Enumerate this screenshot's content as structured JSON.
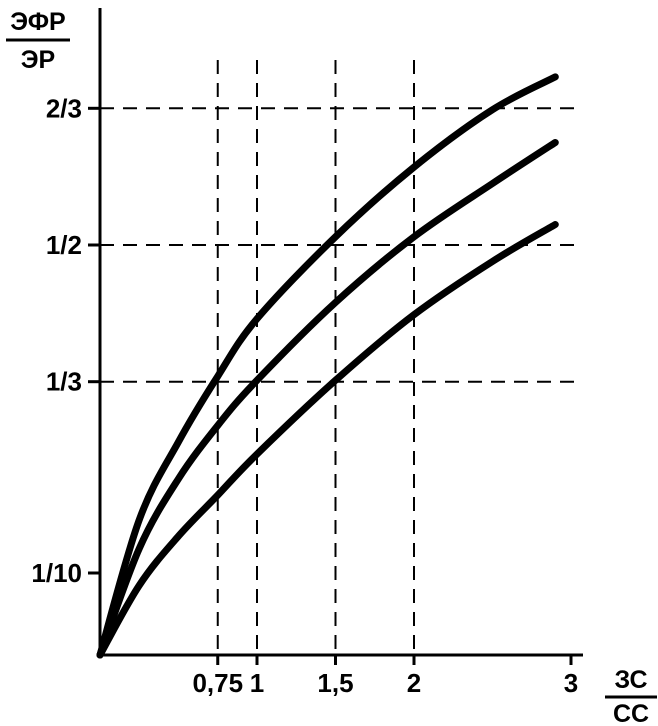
{
  "chart_data": {
    "type": "line",
    "title": "",
    "ylabel_numerator": "ЭФР",
    "ylabel_denominator": "ЭР",
    "xlabel_numerator": "ЗС",
    "xlabel_denominator": "СС",
    "x_ticks": [
      {
        "value": 0.75,
        "label": "0,75"
      },
      {
        "value": 1,
        "label": "1"
      },
      {
        "value": 1.5,
        "label": "1,5"
      },
      {
        "value": 2,
        "label": "2"
      },
      {
        "value": 3,
        "label": "3"
      }
    ],
    "y_ticks": [
      {
        "value": 0.1,
        "label": "1/10"
      },
      {
        "value": 0.3333,
        "label": "1/3"
      },
      {
        "value": 0.5,
        "label": "1/2"
      },
      {
        "value": 0.6667,
        "label": "2/3"
      }
    ],
    "xlim": [
      0,
      3.05
    ],
    "ylim": [
      0,
      0.78
    ],
    "grid": "dashed reference lines at tick values",
    "series": [
      {
        "values": [
          [
            0,
            0
          ],
          [
            0.25,
            0.165
          ],
          [
            0.5,
            0.26
          ],
          [
            0.75,
            0.34
          ],
          [
            1.0,
            0.41
          ],
          [
            1.5,
            0.51
          ],
          [
            2.0,
            0.595
          ],
          [
            2.5,
            0.665
          ],
          [
            2.9,
            0.705
          ]
        ]
      },
      {
        "values": [
          [
            0,
            0
          ],
          [
            0.25,
            0.13
          ],
          [
            0.5,
            0.215
          ],
          [
            0.75,
            0.28
          ],
          [
            1.0,
            0.335
          ],
          [
            1.5,
            0.43
          ],
          [
            2.0,
            0.51
          ],
          [
            2.5,
            0.575
          ],
          [
            2.9,
            0.625
          ]
        ]
      },
      {
        "values": [
          [
            0,
            0
          ],
          [
            0.25,
            0.085
          ],
          [
            0.5,
            0.145
          ],
          [
            0.75,
            0.195
          ],
          [
            1.0,
            0.245
          ],
          [
            1.5,
            0.335
          ],
          [
            2.0,
            0.415
          ],
          [
            2.5,
            0.48
          ],
          [
            2.9,
            0.525
          ]
        ]
      }
    ]
  }
}
